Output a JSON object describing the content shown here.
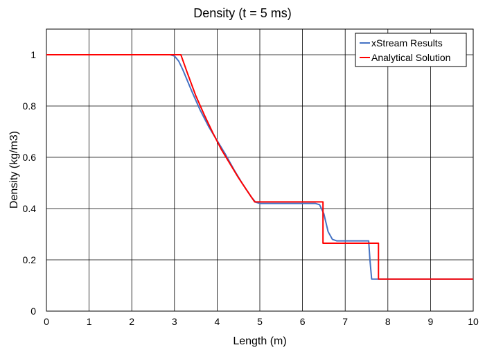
{
  "chart_data": {
    "type": "line",
    "title": "Density (t = 5 ms)",
    "xlabel": "Length (m)",
    "ylabel": "Density (kg/m3)",
    "xlim": [
      0,
      10
    ],
    "ylim": [
      0,
      1.1
    ],
    "xticks": [
      0,
      1,
      2,
      3,
      4,
      5,
      6,
      7,
      8,
      9,
      10
    ],
    "yticks": [
      0,
      0.2,
      0.4,
      0.6,
      0.8,
      1
    ],
    "ytick_labels": [
      "0",
      "0.2",
      "0.4",
      "0.6",
      "0.8",
      "1"
    ],
    "grid": true,
    "legend_position": "top-right",
    "series": [
      {
        "name": "xStream Results",
        "color": "#4472c4",
        "points": [
          [
            0,
            1.0
          ],
          [
            2.9,
            1.0
          ],
          [
            3.0,
            0.995
          ],
          [
            3.1,
            0.975
          ],
          [
            3.2,
            0.94
          ],
          [
            3.4,
            0.86
          ],
          [
            3.6,
            0.785
          ],
          [
            3.8,
            0.72
          ],
          [
            4.0,
            0.665
          ],
          [
            4.2,
            0.61
          ],
          [
            4.4,
            0.55
          ],
          [
            4.6,
            0.495
          ],
          [
            4.8,
            0.445
          ],
          [
            4.9,
            0.425
          ],
          [
            5.0,
            0.42
          ],
          [
            6.3,
            0.42
          ],
          [
            6.4,
            0.415
          ],
          [
            6.5,
            0.38
          ],
          [
            6.6,
            0.31
          ],
          [
            6.7,
            0.28
          ],
          [
            6.8,
            0.274
          ],
          [
            7.55,
            0.274
          ],
          [
            7.58,
            0.2
          ],
          [
            7.62,
            0.125
          ],
          [
            10,
            0.125
          ]
        ]
      },
      {
        "name": "Analytical Solution",
        "color": "#ff0000",
        "points": [
          [
            0,
            1.0
          ],
          [
            3.15,
            1.0
          ],
          [
            3.3,
            0.93
          ],
          [
            3.5,
            0.84
          ],
          [
            3.7,
            0.765
          ],
          [
            3.9,
            0.695
          ],
          [
            4.1,
            0.63
          ],
          [
            4.3,
            0.575
          ],
          [
            4.5,
            0.52
          ],
          [
            4.7,
            0.47
          ],
          [
            4.88,
            0.426
          ],
          [
            6.48,
            0.426
          ],
          [
            6.48,
            0.265
          ],
          [
            7.78,
            0.265
          ],
          [
            7.78,
            0.125
          ],
          [
            10,
            0.125
          ]
        ]
      }
    ]
  }
}
